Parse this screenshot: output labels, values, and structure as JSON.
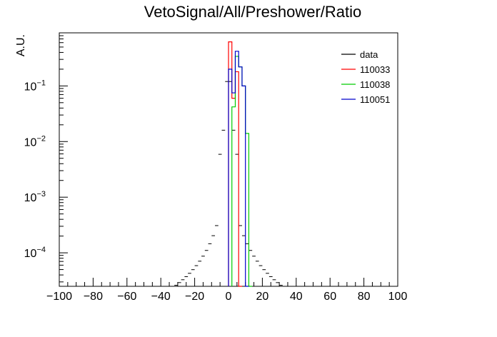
{
  "chart_data": {
    "type": "histogram",
    "title": "VetoSignal/All/Preshower/Ratio",
    "ylabel": "A.U.",
    "xlabel": "",
    "xlim": [
      -100,
      100
    ],
    "ylim_log": [
      2.5e-05,
      0.9
    ],
    "yscale": "log",
    "x_ticks": [
      "−100",
      "−80",
      "−60",
      "−40",
      "−20",
      "0",
      "20",
      "40",
      "60",
      "80",
      "100"
    ],
    "y_ticks": [
      {
        "base": "10",
        "exp": "−1",
        "value": 0.1
      },
      {
        "base": "10",
        "exp": "−2",
        "value": 0.01
      },
      {
        "base": "10",
        "exp": "−3",
        "value": 0.001
      },
      {
        "base": "10",
        "exp": "−4",
        "value": 0.0001
      }
    ],
    "legend_position": "top-right",
    "series": [
      {
        "name": "data",
        "color": "#000000"
      },
      {
        "name": "110033",
        "color": "#ff0000",
        "bins": [
          [
            0,
            2,
            0.62
          ],
          [
            2,
            4,
            0.06
          ],
          [
            4,
            6,
            0.18
          ],
          [
            6,
            8,
            0
          ]
        ]
      },
      {
        "name": "110038",
        "color": "#00cc00",
        "bins": [
          [
            2,
            4,
            0.042
          ],
          [
            4,
            6,
            0.34
          ],
          [
            6,
            8,
            0.22
          ],
          [
            8,
            10,
            0.1
          ],
          [
            10,
            12,
            0.014
          ],
          [
            12,
            14,
            0
          ]
        ]
      },
      {
        "name": "110051",
        "color": "#0000cc",
        "bins": [
          [
            0,
            2,
            0.2
          ],
          [
            2,
            4,
            0.075
          ],
          [
            4,
            6,
            0.42
          ],
          [
            6,
            8,
            0.22
          ],
          [
            8,
            10,
            0.1
          ],
          [
            10,
            12,
            0
          ]
        ]
      }
    ]
  }
}
